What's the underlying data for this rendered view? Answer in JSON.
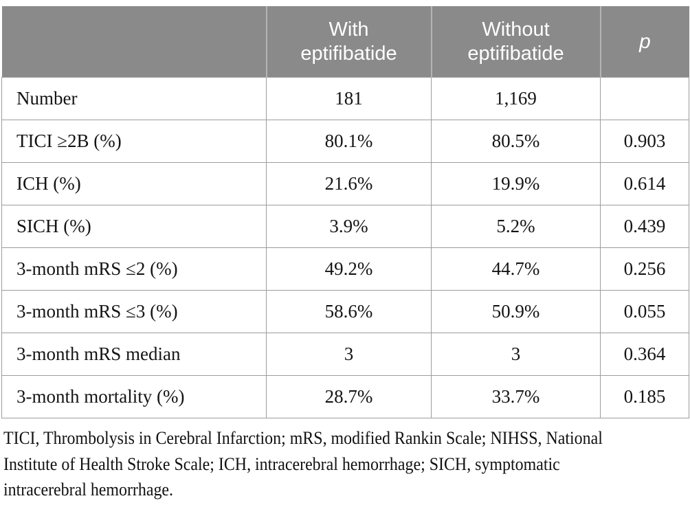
{
  "table": {
    "header": {
      "empty_label": "",
      "with_label": "With eptifibatide",
      "without_label": "Without eptifibatide",
      "p_label": "p"
    },
    "rows": [
      {
        "label": "Number",
        "with_value": "181",
        "without_value": "1,169",
        "p_value": ""
      },
      {
        "label": "TICI ≥2B (%)",
        "with_value": "80.1%",
        "without_value": "80.5%",
        "p_value": "0.903"
      },
      {
        "label": "ICH (%)",
        "with_value": "21.6%",
        "without_value": "19.9%",
        "p_value": "0.614"
      },
      {
        "label": "SICH (%)",
        "with_value": "3.9%",
        "without_value": "5.2%",
        "p_value": "0.439"
      },
      {
        "label": "3-month mRS ≤2 (%)",
        "with_value": "49.2%",
        "without_value": "44.7%",
        "p_value": "0.256"
      },
      {
        "label": "3-month mRS ≤3 (%)",
        "with_value": "58.6%",
        "without_value": "50.9%",
        "p_value": "0.055"
      },
      {
        "label": "3-month mRS median",
        "with_value": "3",
        "without_value": "3",
        "p_value": "0.364"
      },
      {
        "label": "3-month mortality (%)",
        "with_value": "28.7%",
        "without_value": "33.7%",
        "p_value": "0.185"
      }
    ]
  },
  "footnote": {
    "lines": [
      "TICI, Thrombolysis in Cerebral Infarction; mRS, modified Rankin Scale; NIHSS, National",
      "Institute of Health Stroke Scale; ICH, intracerebral hemorrhage; SICH, symptomatic",
      "intracerebral hemorrhage."
    ]
  },
  "colors": {
    "header_bg": "#8a8a8a",
    "header_text": "#ffffff",
    "header_divider": "#b4b4b4",
    "cell_border": "#9c9c9c",
    "body_text": "#141414"
  },
  "chart_data": {
    "type": "table",
    "columns": [
      "",
      "With eptifibatide",
      "Without eptifibatide",
      "p"
    ],
    "rows": [
      [
        "Number",
        "181",
        "1,169",
        ""
      ],
      [
        "TICI ≥2B (%)",
        "80.1%",
        "80.5%",
        "0.903"
      ],
      [
        "ICH (%)",
        "21.6%",
        "19.9%",
        "0.614"
      ],
      [
        "SICH (%)",
        "3.9%",
        "5.2%",
        "0.439"
      ],
      [
        "3-month mRS ≤2 (%)",
        "49.2%",
        "44.7%",
        "0.256"
      ],
      [
        "3-month mRS ≤3 (%)",
        "58.6%",
        "50.9%",
        "0.055"
      ],
      [
        "3-month mRS median",
        "3",
        "3",
        "0.364"
      ],
      [
        "3-month mortality (%)",
        "28.7%",
        "33.7%",
        "0.185"
      ]
    ]
  }
}
